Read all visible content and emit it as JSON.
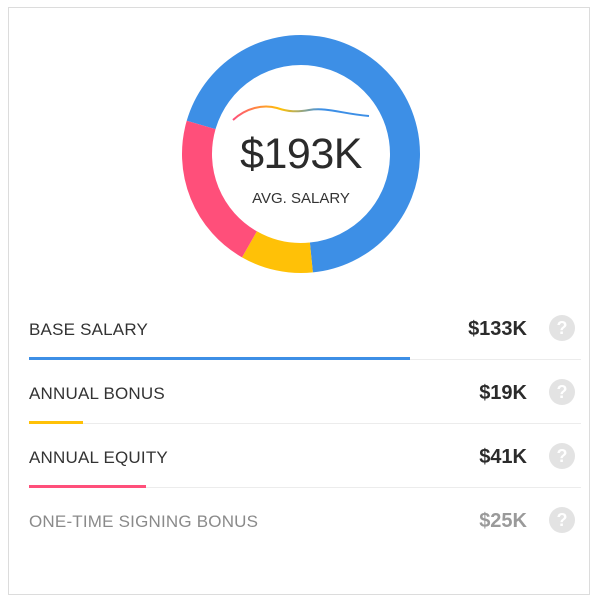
{
  "colors": {
    "base": "#3d8fe6",
    "bonus": "#ffc107",
    "equity": "#ff4f7a",
    "signing": "#f0f0f0"
  },
  "center": {
    "amount": "$193K",
    "label": "AVG. SALARY"
  },
  "chart_data": {
    "type": "pie",
    "variant": "donut",
    "title": "",
    "center_value": "$193K",
    "center_label": "AVG. SALARY",
    "total": 193,
    "slices": [
      {
        "label": "BASE SALARY",
        "value": 133,
        "color": "#3d8fe6"
      },
      {
        "label": "ANNUAL BONUS",
        "value": 19,
        "color": "#ffc107"
      },
      {
        "label": "ANNUAL EQUITY",
        "value": 41,
        "color": "#ff4f7a"
      }
    ]
  },
  "rows": [
    {
      "label": "BASE SALARY",
      "value": "$133K",
      "help": "?",
      "bar_fraction": 0.69,
      "bar_color": "#3d8fe6"
    },
    {
      "label": "ANNUAL BONUS",
      "value": "$19K",
      "help": "?",
      "bar_fraction": 0.098,
      "bar_color": "#ffc107"
    },
    {
      "label": "ANNUAL EQUITY",
      "value": "$41K",
      "help": "?",
      "bar_fraction": 0.212,
      "bar_color": "#ff4f7a"
    },
    {
      "label": "ONE-TIME SIGNING BONUS",
      "value": "$25K",
      "help": "?",
      "bar_fraction": 0,
      "bar_color": "#ffffff"
    }
  ]
}
